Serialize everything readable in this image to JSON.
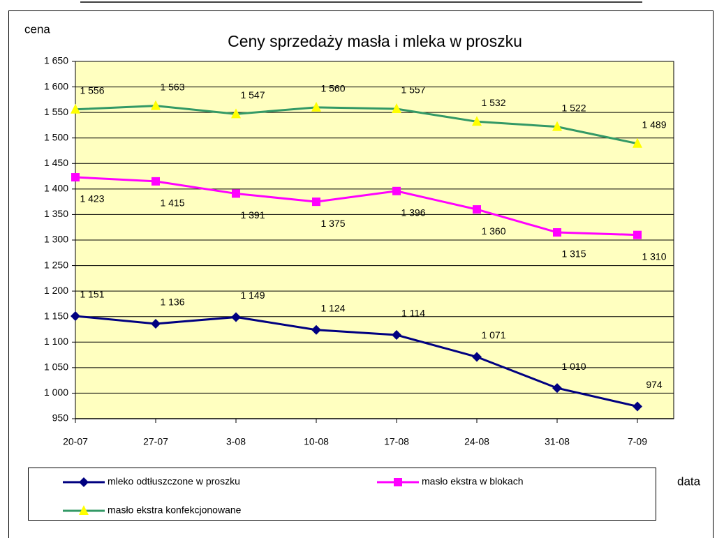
{
  "chart_data": {
    "type": "line",
    "title": "Ceny sprzedaży masła i mleka w proszku",
    "ylabel": "cena",
    "xlabel": "data",
    "categories": [
      "20-07",
      "27-07",
      "3-08",
      "10-08",
      "17-08",
      "24-08",
      "31-08",
      "7-09"
    ],
    "series": [
      {
        "name": "mleko odtłuszczone w proszku",
        "color": "#000080",
        "marker": "diamond",
        "values": [
          1151,
          1136,
          1149,
          1124,
          1114,
          1071,
          1010,
          974
        ],
        "value_labels": [
          "1 151",
          "1 136",
          "1 149",
          "1 124",
          "1 114",
          "1 071",
          "1 010",
          "974"
        ]
      },
      {
        "name": "masło ekstra w blokach",
        "color": "#ff00ff",
        "marker": "square",
        "values": [
          1423,
          1415,
          1391,
          1375,
          1396,
          1360,
          1315,
          1310
        ],
        "value_labels": [
          "1 423",
          "1 415",
          "1 391",
          "1 375",
          "1 396",
          "1 360",
          "1 315",
          "1 310"
        ]
      },
      {
        "name": "masło ekstra konfekcjonowane",
        "color": "#339966",
        "marker": "triangle",
        "values": [
          1556,
          1563,
          1547,
          1560,
          1557,
          1532,
          1522,
          1489
        ],
        "value_labels": [
          "1 556",
          "1 563",
          "1 547",
          "1 560",
          "1 557",
          "1 532",
          "1 522",
          "1 489"
        ]
      }
    ],
    "ylim": [
      950,
      1650
    ],
    "yticks": [
      950,
      {
        "value": 1000,
        "label": "1 000"
      },
      {
        "value": 1050,
        "label": "1 050"
      },
      {
        "value": 1100,
        "label": "1 100"
      },
      {
        "value": 1150,
        "label": "1 150"
      },
      {
        "value": 1200,
        "label": "1 200"
      },
      {
        "value": 1250,
        "label": "1 250"
      },
      {
        "value": 1300,
        "label": "1 300"
      },
      {
        "value": 1350,
        "label": "1 350"
      },
      {
        "value": 1400,
        "label": "1 400"
      },
      {
        "value": 1450,
        "label": "1 450"
      },
      {
        "value": 1500,
        "label": "1 500"
      },
      {
        "value": 1550,
        "label": "1 550"
      },
      {
        "value": 1600,
        "label": "1 600"
      },
      {
        "value": 1650,
        "label": "1 650"
      }
    ],
    "grid": true,
    "plot_background": "#ffffc0"
  }
}
